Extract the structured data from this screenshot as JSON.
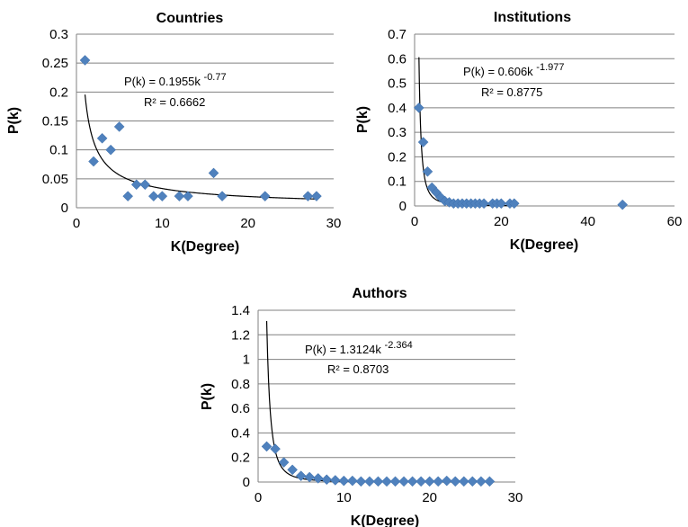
{
  "chart_data": [
    {
      "type": "scatter",
      "title": "Countries",
      "xlabel": "K(Degree)",
      "ylabel": "P(k)",
      "xlim": [
        0,
        30
      ],
      "ylim": [
        0,
        0.3
      ],
      "xticks": [
        0,
        10,
        20,
        30
      ],
      "yticks": [
        0,
        0.05,
        0.1,
        0.15,
        0.2,
        0.25,
        0.3
      ],
      "ytick_labels": [
        "0",
        "0.05",
        "0.1",
        "0.15",
        "0.2",
        "0.25",
        "0.3"
      ],
      "grid": "horizontal",
      "marker_color": "#4F81BD",
      "fit_color": "#000000",
      "fit": {
        "a": 0.1955,
        "b": -0.77,
        "x_from": 1,
        "x_to": 28
      },
      "equation": {
        "text": "P(k) = 0.1955k",
        "exponent": "-0.77",
        "r2": "R² = 0.6662"
      },
      "points": [
        {
          "x": 1,
          "y": 0.255
        },
        {
          "x": 2,
          "y": 0.08
        },
        {
          "x": 3,
          "y": 0.12
        },
        {
          "x": 4,
          "y": 0.1
        },
        {
          "x": 5,
          "y": 0.14
        },
        {
          "x": 6,
          "y": 0.02
        },
        {
          "x": 7,
          "y": 0.04
        },
        {
          "x": 8,
          "y": 0.04
        },
        {
          "x": 9,
          "y": 0.02
        },
        {
          "x": 10,
          "y": 0.02
        },
        {
          "x": 12,
          "y": 0.02
        },
        {
          "x": 13,
          "y": 0.02
        },
        {
          "x": 16,
          "y": 0.06
        },
        {
          "x": 17,
          "y": 0.02
        },
        {
          "x": 22,
          "y": 0.02
        },
        {
          "x": 27,
          "y": 0.02
        },
        {
          "x": 28,
          "y": 0.02
        }
      ]
    },
    {
      "type": "scatter",
      "title": "Institutions",
      "xlabel": "K(Degree)",
      "ylabel": "P(k)",
      "xlim": [
        0,
        60
      ],
      "ylim": [
        0,
        0.7
      ],
      "xticks": [
        0,
        20,
        40,
        60
      ],
      "yticks": [
        0,
        0.1,
        0.2,
        0.3,
        0.4,
        0.5,
        0.6,
        0.7
      ],
      "ytick_labels": [
        "0",
        "0.1",
        "0.2",
        "0.3",
        "0.4",
        "0.5",
        "0.6",
        "0.7"
      ],
      "grid": "horizontal",
      "marker_color": "#4F81BD",
      "fit_color": "#000000",
      "fit": {
        "a": 0.606,
        "b": -1.977,
        "x_from": 1,
        "x_to": 23
      },
      "equation": {
        "text": "P(k) = 0.606k",
        "exponent": "-1.977",
        "r2": "R² = 0.8775"
      },
      "points": [
        {
          "x": 1,
          "y": 0.4
        },
        {
          "x": 2,
          "y": 0.26
        },
        {
          "x": 3,
          "y": 0.14
        },
        {
          "x": 4,
          "y": 0.075
        },
        {
          "x": 5,
          "y": 0.055
        },
        {
          "x": 6,
          "y": 0.035
        },
        {
          "x": 7,
          "y": 0.02
        },
        {
          "x": 8,
          "y": 0.015
        },
        {
          "x": 9,
          "y": 0.01
        },
        {
          "x": 10,
          "y": 0.01
        },
        {
          "x": 11,
          "y": 0.01
        },
        {
          "x": 12,
          "y": 0.01
        },
        {
          "x": 13,
          "y": 0.01
        },
        {
          "x": 14,
          "y": 0.01
        },
        {
          "x": 15,
          "y": 0.01
        },
        {
          "x": 16,
          "y": 0.01
        },
        {
          "x": 18,
          "y": 0.01
        },
        {
          "x": 19,
          "y": 0.01
        },
        {
          "x": 20,
          "y": 0.01
        },
        {
          "x": 22,
          "y": 0.01
        },
        {
          "x": 23,
          "y": 0.01
        },
        {
          "x": 48,
          "y": 0.005
        }
      ]
    },
    {
      "type": "scatter",
      "title": "Authors",
      "xlabel": "K(Degree)",
      "ylabel": "P(k)",
      "xlim": [
        0,
        30
      ],
      "ylim": [
        0,
        1.4
      ],
      "xticks": [
        0,
        10,
        20,
        30
      ],
      "yticks": [
        0,
        0.2,
        0.4,
        0.6,
        0.8,
        1,
        1.2,
        1.4
      ],
      "ytick_labels": [
        "0",
        "0.2",
        "0.4",
        "0.6",
        "0.8",
        "1",
        "1.2",
        "1.4"
      ],
      "grid": "horizontal",
      "marker_color": "#4F81BD",
      "fit_color": "#000000",
      "fit": {
        "a": 1.3124,
        "b": -2.364,
        "x_from": 1,
        "x_to": 27
      },
      "equation": {
        "text": "P(k) = 1.3124k",
        "exponent": "-2.364",
        "r2": "R² = 0.8703"
      },
      "points": [
        {
          "x": 1,
          "y": 0.29
        },
        {
          "x": 2,
          "y": 0.27
        },
        {
          "x": 3,
          "y": 0.16
        },
        {
          "x": 4,
          "y": 0.1
        },
        {
          "x": 5,
          "y": 0.05
        },
        {
          "x": 6,
          "y": 0.04
        },
        {
          "x": 7,
          "y": 0.03
        },
        {
          "x": 8,
          "y": 0.02
        },
        {
          "x": 9,
          "y": 0.015
        },
        {
          "x": 10,
          "y": 0.01
        },
        {
          "x": 11,
          "y": 0.01
        },
        {
          "x": 12,
          "y": 0.005
        },
        {
          "x": 13,
          "y": 0.005
        },
        {
          "x": 14,
          "y": 0.005
        },
        {
          "x": 15,
          "y": 0.005
        },
        {
          "x": 16,
          "y": 0.005
        },
        {
          "x": 17,
          "y": 0.005
        },
        {
          "x": 18,
          "y": 0.005
        },
        {
          "x": 19,
          "y": 0.005
        },
        {
          "x": 20,
          "y": 0.005
        },
        {
          "x": 21,
          "y": 0.005
        },
        {
          "x": 22,
          "y": 0.01
        },
        {
          "x": 23,
          "y": 0.005
        },
        {
          "x": 24,
          "y": 0.005
        },
        {
          "x": 25,
          "y": 0.005
        },
        {
          "x": 26,
          "y": 0.005
        },
        {
          "x": 27,
          "y": 0.005
        }
      ]
    }
  ]
}
